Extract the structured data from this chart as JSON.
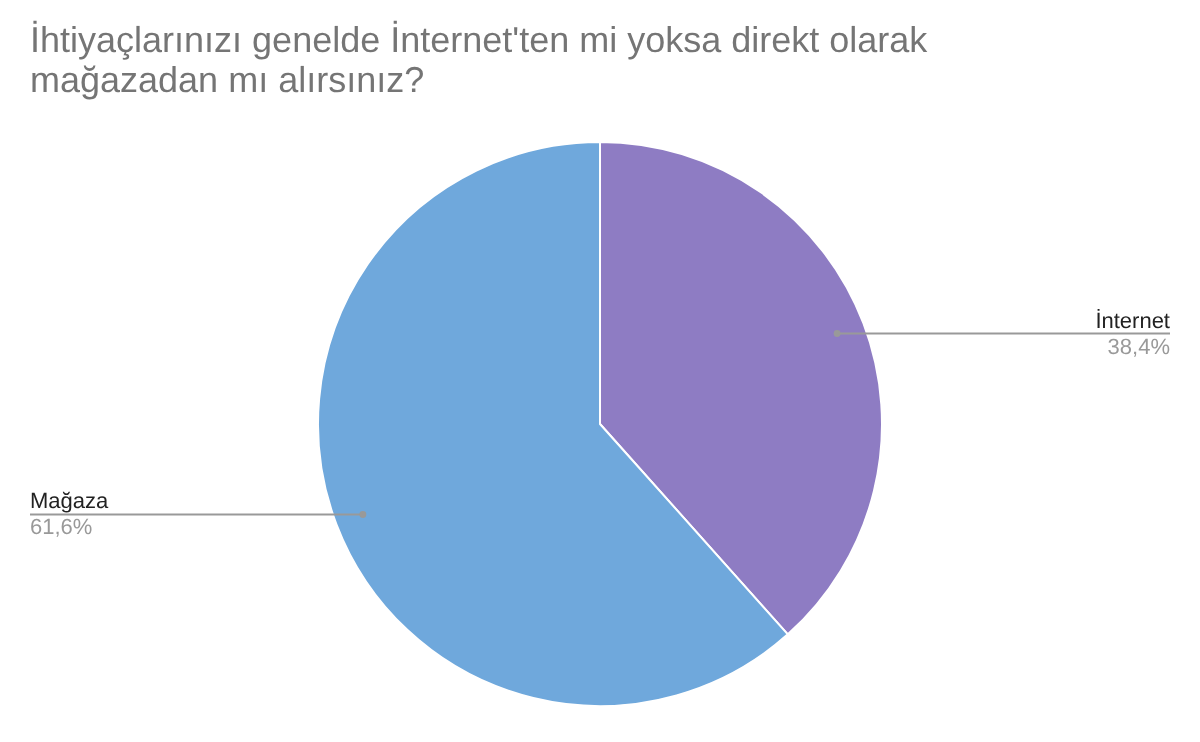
{
  "chart_data": {
    "type": "pie",
    "title": "İhtiyaçlarınızı genelde İnternet'ten mi yoksa direkt olarak mağazadan mı alırsınız?",
    "categories": [
      "İnternet",
      "Mağaza"
    ],
    "values": [
      38.4,
      61.6
    ],
    "colors": [
      "#8e7cc3",
      "#6fa8dc"
    ],
    "value_labels": [
      "38,4%",
      "61,6%"
    ]
  }
}
